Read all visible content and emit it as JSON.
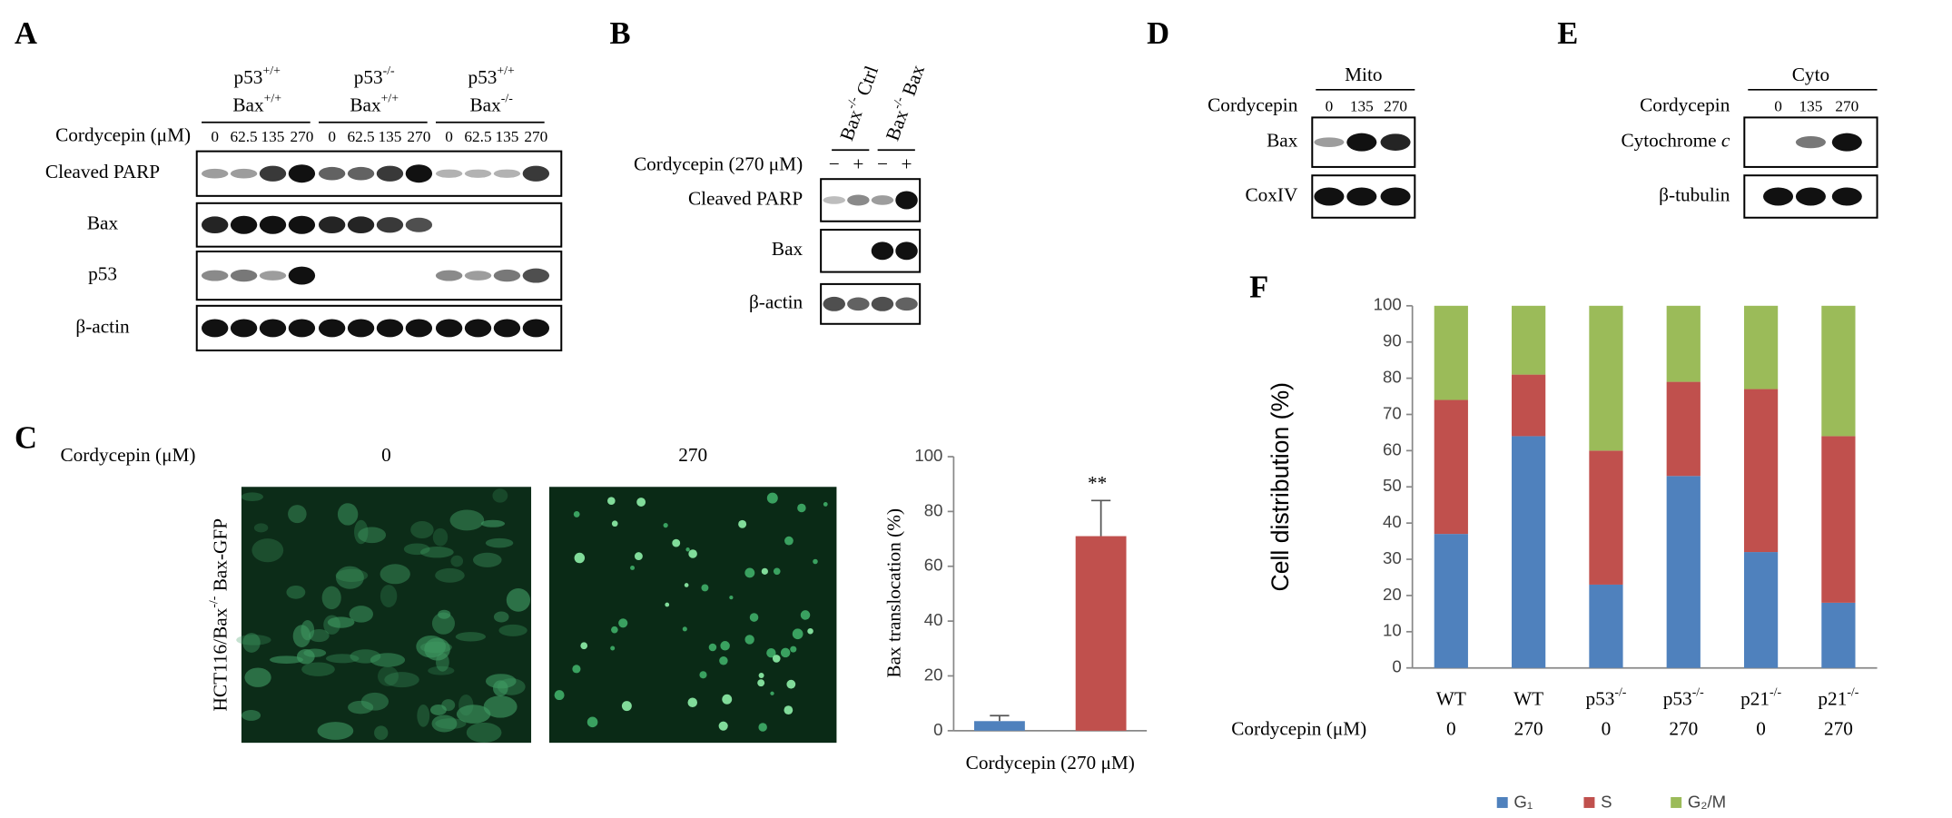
{
  "panel_labels": {
    "A": "A",
    "B": "B",
    "C": "C",
    "D": "D",
    "E": "E",
    "F": "F"
  },
  "blot_a": {
    "treatment": "Cordycepin (μM)",
    "groups": [
      {
        "line1": {
          "gene": "p53",
          "sup": "+/+"
        },
        "line2": {
          "gene": "Bax",
          "sup": "+/+"
        },
        "doses": [
          "0",
          "62.5",
          "135",
          "270"
        ]
      },
      {
        "line1": {
          "gene": "p53",
          "sup": "-/-"
        },
        "line2": {
          "gene": "Bax",
          "sup": "+/+"
        },
        "doses": [
          "0",
          "62.5",
          "135",
          "270"
        ]
      },
      {
        "line1": {
          "gene": "p53",
          "sup": "+/+"
        },
        "line2": {
          "gene": "Bax",
          "sup": "-/-"
        },
        "doses": [
          "0",
          "62.5",
          "135",
          "270"
        ]
      }
    ],
    "rows": [
      "Cleaved PARP",
      "Bax",
      "p53",
      "β-actin"
    ]
  },
  "blot_b": {
    "groups": [
      {
        "gene": "Bax",
        "sup": "-/-",
        "name": "Ctrl"
      },
      {
        "gene": "Bax",
        "sup": "-/-",
        "name": "Bax"
      }
    ],
    "treatment": "Cordycepin (270 μM)",
    "signs": [
      "−",
      "+",
      "−",
      "+"
    ],
    "rows": [
      "Cleaved PARP",
      "Bax",
      "β-actin"
    ]
  },
  "blot_d": {
    "fraction": "Mito",
    "treatment": "Cordycepin",
    "doses": [
      "0",
      "135",
      "270"
    ],
    "rows": [
      "Bax",
      "CoxIV"
    ]
  },
  "blot_e": {
    "fraction": "Cyto",
    "treatment": "Cordycepin",
    "doses": [
      "0",
      "135",
      "270"
    ],
    "rows": [
      {
        "text": "Cytochrome",
        "italic": "c"
      },
      {
        "text": "β-tubulin"
      }
    ]
  },
  "micrographs": {
    "treatment": "Cordycepin (μM)",
    "doses": [
      "0",
      "270"
    ],
    "label": {
      "pre": "HCT116/Bax",
      "sup": "-/-",
      "post": "Bax-GFP"
    }
  },
  "chart_data": [
    {
      "type": "bar",
      "ylabel": "Bax translocation (%)",
      "xlabel": "Cordycepin (270 μM)",
      "values": [
        3.5,
        71
      ],
      "errors": [
        2,
        13
      ],
      "colors": [
        "#4f81bd",
        "#c0504d"
      ],
      "annotation": "**",
      "ylim": [
        0,
        100
      ],
      "yticks": [
        0,
        20,
        40,
        60,
        80,
        100
      ]
    },
    {
      "type": "stacked_bar",
      "ylabel": "Cell distribution (%)",
      "treatment": "Cordycepin (μM)",
      "categories": [
        {
          "name": "WT"
        },
        {
          "name": "WT"
        },
        {
          "name": "p53",
          "sup": "-/-"
        },
        {
          "name": "p53",
          "sup": "-/-"
        },
        {
          "name": "p21",
          "sup": "-/-"
        },
        {
          "name": "p21",
          "sup": "-/-"
        }
      ],
      "doses": [
        "0",
        "270",
        "0",
        "270",
        "0",
        "270"
      ],
      "series": [
        {
          "name": "G₁",
          "color": "#4f81bd",
          "values": [
            37,
            64,
            23,
            53,
            32,
            18
          ]
        },
        {
          "name": "S",
          "color": "#c0504d",
          "values": [
            37,
            17,
            37,
            26,
            45,
            46
          ]
        },
        {
          "name": "G₂/M",
          "color": "#9bbb59",
          "values": [
            26,
            19,
            40,
            21,
            23,
            36
          ]
        }
      ],
      "ylim": [
        0,
        100
      ],
      "yticks": [
        0,
        10,
        20,
        30,
        40,
        50,
        60,
        70,
        80,
        90,
        100
      ]
    }
  ]
}
